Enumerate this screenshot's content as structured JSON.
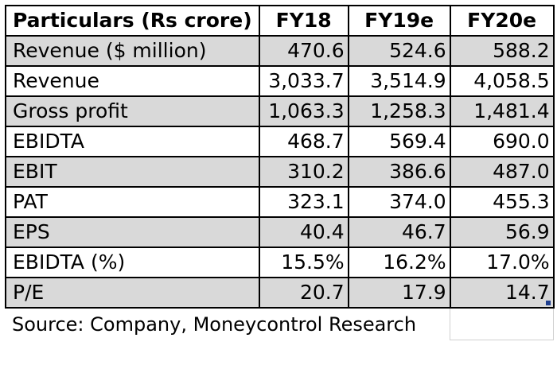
{
  "table": {
    "headers": [
      "Particulars (Rs crore)",
      "FY18",
      "FY19e",
      "FY20e"
    ],
    "rows": [
      {
        "label": "Revenue ($ million)",
        "values": [
          "470.6",
          "524.6",
          "588.2"
        ],
        "shaded": true
      },
      {
        "label": "Revenue",
        "values": [
          "3,033.7",
          "3,514.9",
          "4,058.5"
        ],
        "shaded": false
      },
      {
        "label": "Gross profit",
        "values": [
          "1,063.3",
          "1,258.3",
          "1,481.4"
        ],
        "shaded": true
      },
      {
        "label": "EBIDTA",
        "values": [
          "468.7",
          "569.4",
          "690.0"
        ],
        "shaded": false
      },
      {
        "label": "EBIT",
        "values": [
          "310.2",
          "386.6",
          "487.0"
        ],
        "shaded": true
      },
      {
        "label": "PAT",
        "values": [
          "323.1",
          "374.0",
          "455.3"
        ],
        "shaded": false
      },
      {
        "label": "EPS",
        "values": [
          "40.4",
          "46.7",
          "56.9"
        ],
        "shaded": true
      },
      {
        "label": "EBIDTA (%)",
        "values": [
          "15.5%",
          "16.2%",
          "17.0%"
        ],
        "shaded": false
      },
      {
        "label": "P/E",
        "values": [
          "20.7",
          "17.9",
          "14.7"
        ],
        "shaded": true
      }
    ],
    "source": "Source: Company, Moneycontrol Research"
  },
  "colors": {
    "shade": "#d9d9d9",
    "border": "#000000"
  }
}
